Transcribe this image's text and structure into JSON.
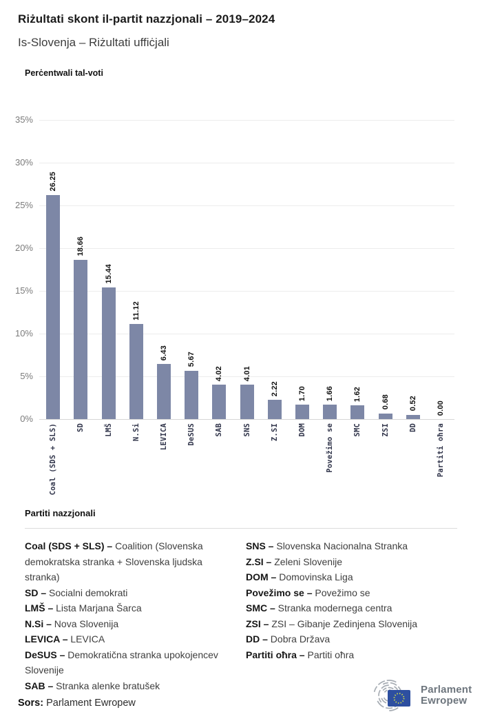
{
  "header": {
    "title": "Riżultati skont il-partit nazzjonali – 2019–2024",
    "subtitle": "Is-Slovenja – Riżultati uffiċjali"
  },
  "chart_data": {
    "type": "bar",
    "title": "Perċentwali tal-voti",
    "categories": [
      "Coal (SDS + SLS)",
      "SD",
      "LMŠ",
      "N.Si",
      "LEVICA",
      "DeSUS",
      "SAB",
      "SNS",
      "Z.SI",
      "DOM",
      "Povežimo se",
      "SMC",
      "ZSI",
      "DD",
      "Partiti oħra"
    ],
    "values": [
      26.25,
      18.66,
      15.44,
      11.12,
      6.43,
      5.67,
      4.02,
      4.01,
      2.22,
      1.7,
      1.66,
      1.62,
      0.68,
      0.52,
      0.0
    ],
    "value_labels": [
      "26.25",
      "18.66",
      "15.44",
      "11.12",
      "6.43",
      "5.67",
      "4.02",
      "4.01",
      "2.22",
      "1.70",
      "1.66",
      "1.62",
      "0.68",
      "0.52",
      "0.00"
    ],
    "yticks": [
      {
        "label": "35%",
        "value": 35
      },
      {
        "label": "30%",
        "value": 30
      },
      {
        "label": "25%",
        "value": 25
      },
      {
        "label": "20%",
        "value": 20
      },
      {
        "label": "15%",
        "value": 15
      },
      {
        "label": "10%",
        "value": 10
      },
      {
        "label": "5%",
        "value": 5
      },
      {
        "label": "0%",
        "value": 0
      }
    ],
    "ylim": [
      0,
      35
    ],
    "grid": true,
    "legend_position": "none",
    "bar_color": "#7d87a6"
  },
  "legend": {
    "heading": "Partiti nazzjonali",
    "columns": [
      [
        {
          "abbr": "Coal (SDS + SLS) –",
          "name": "Coalition (Slovenska demokratska stranka + Slovenska ljudska stranka)"
        },
        {
          "abbr": "SD –",
          "name": "Socialni demokrati"
        },
        {
          "abbr": "LMŠ –",
          "name": "Lista Marjana Šarca"
        },
        {
          "abbr": "N.Si –",
          "name": "Nova Slovenija"
        },
        {
          "abbr": "LEVICA –",
          "name": "LEVICA"
        },
        {
          "abbr": "DeSUS –",
          "name": "Demokratična stranka upokojencev Slovenije"
        },
        {
          "abbr": "SAB –",
          "name": "Stranka alenke bratušek"
        }
      ],
      [
        {
          "abbr": "SNS –",
          "name": "Slovenska Nacionalna Stranka"
        },
        {
          "abbr": "Z.SI –",
          "name": "Zeleni Slovenije"
        },
        {
          "abbr": "DOM –",
          "name": "Domovinska Liga"
        },
        {
          "abbr": "Povežimo se –",
          "name": "Povežimo se"
        },
        {
          "abbr": "SMC –",
          "name": "Stranka modernega centra"
        },
        {
          "abbr": "ZSI –",
          "name": "ZSI – Gibanje Zedinjena Slovenija"
        },
        {
          "abbr": "DD –",
          "name": "Dobra Država"
        },
        {
          "abbr": "Partiti oħra –",
          "name": "Partiti oħra"
        }
      ]
    ]
  },
  "footer": {
    "source_label": "Sors:",
    "source_name": "Parlament Ewropew",
    "logo_line1": "Parlament",
    "logo_line2": "Ewropew"
  },
  "colors": {
    "bar": "#7d87a6",
    "gridline": "#ececec",
    "axis_label": "#7b7b7b",
    "logo_gray": "#6d757d",
    "eu_flag_blue": "#2d4fa0",
    "eu_stars": "#c9d64c"
  }
}
